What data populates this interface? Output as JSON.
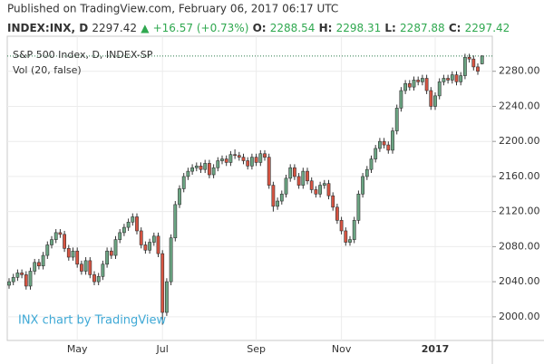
{
  "header": {
    "published": "Published on TradingView.com, February 06, 2017 06:17 UTC",
    "symbol": "INDEX:INX, D",
    "arrow": "▲",
    "change": "+16.57 (+0.73%)",
    "o": "O:",
    "h": "H:",
    "l": "L:",
    "c": "C:"
  },
  "chart_data": {
    "type": "candlestick",
    "title": "S&P 500 Index, D, INDEX-SP",
    "subtitle": "Vol (20, false)",
    "watermark": "INX chart by TradingView",
    "categories": [
      null,
      null,
      null,
      null,
      null,
      null,
      null,
      null,
      null,
      null,
      null,
      null,
      null,
      null,
      null,
      null,
      "May",
      null,
      null,
      null,
      null,
      null,
      null,
      null,
      null,
      null,
      null,
      null,
      null,
      null,
      null,
      null,
      null,
      null,
      null,
      null,
      "Jul",
      null,
      null,
      null,
      null,
      null,
      null,
      null,
      null,
      null,
      null,
      null,
      null,
      null,
      null,
      null,
      null,
      null,
      null,
      null,
      null,
      null,
      "Sep",
      null,
      null,
      null,
      null,
      null,
      null,
      null,
      null,
      null,
      null,
      null,
      null,
      null,
      null,
      null,
      null,
      null,
      null,
      null,
      "Nov",
      null,
      null,
      null,
      null,
      null,
      null,
      null,
      null,
      null,
      null,
      null,
      null,
      null,
      null,
      null,
      null,
      null,
      null,
      null,
      null,
      null,
      "2017",
      null,
      null,
      null,
      null,
      null,
      null,
      null,
      null,
      null,
      null,
      null
    ],
    "open": [
      2036,
      2040,
      2045,
      2050,
      2048,
      2035,
      2052,
      2062,
      2058,
      2070,
      2082,
      2088,
      2096,
      2094,
      2078,
      2068,
      2075,
      2060,
      2052,
      2064,
      2048,
      2040,
      2046,
      2060,
      2075,
      2070,
      2088,
      2096,
      2102,
      2108,
      2114,
      2098,
      2082,
      2076,
      2085,
      2092,
      2072,
      2005,
      2040,
      2090,
      2128,
      2146,
      2160,
      2166,
      2170,
      2172,
      2168,
      2175,
      2162,
      2170,
      2178,
      2180,
      2176,
      2185,
      2184,
      2182,
      2178,
      2172,
      2182,
      2176,
      2186,
      2182,
      2150,
      2126,
      2132,
      2140,
      2158,
      2170,
      2160,
      2150,
      2166,
      2155,
      2145,
      2140,
      2150,
      2152,
      2138,
      2125,
      2110,
      2098,
      2085,
      2088,
      2110,
      2140,
      2160,
      2168,
      2180,
      2192,
      2200,
      2196,
      2190,
      2212,
      2238,
      2258,
      2266,
      2262,
      2270,
      2268,
      2272,
      2258,
      2240,
      2252,
      2268,
      2272,
      2270,
      2276,
      2268,
      2275,
      2296,
      2294,
      2285,
      2288.54
    ],
    "high": [
      2044,
      2049,
      2054,
      2054,
      2052,
      2056,
      2066,
      2066,
      2074,
      2086,
      2092,
      2100,
      2100,
      2098,
      2082,
      2079,
      2079,
      2064,
      2068,
      2068,
      2052,
      2050,
      2064,
      2079,
      2079,
      2092,
      2100,
      2106,
      2112,
      2118,
      2118,
      2102,
      2086,
      2089,
      2096,
      2096,
      2076,
      2044,
      2094,
      2132,
      2150,
      2164,
      2170,
      2174,
      2176,
      2176,
      2179,
      2179,
      2174,
      2182,
      2184,
      2184,
      2189,
      2191,
      2188,
      2186,
      2182,
      2186,
      2186,
      2190,
      2190,
      2186,
      2154,
      2136,
      2144,
      2162,
      2174,
      2174,
      2164,
      2170,
      2170,
      2159,
      2149,
      2154,
      2156,
      2156,
      2142,
      2129,
      2114,
      2102,
      2092,
      2114,
      2144,
      2164,
      2172,
      2184,
      2196,
      2204,
      2204,
      2200,
      2216,
      2242,
      2262,
      2270,
      2270,
      2274,
      2274,
      2276,
      2276,
      2262,
      2256,
      2272,
      2276,
      2276,
      2280,
      2280,
      2279,
      2300,
      2300,
      2298,
      2289,
      2298.31
    ],
    "low": [
      2032,
      2036,
      2041,
      2044,
      2031,
      2031,
      2048,
      2054,
      2054,
      2066,
      2078,
      2084,
      2090,
      2074,
      2064,
      2064,
      2056,
      2048,
      2048,
      2044,
      2036,
      2036,
      2042,
      2056,
      2066,
      2066,
      2084,
      2092,
      2098,
      2104,
      2094,
      2078,
      2072,
      2072,
      2081,
      2068,
      1991,
      2001,
      2036,
      2086,
      2124,
      2142,
      2156,
      2162,
      2166,
      2164,
      2164,
      2158,
      2158,
      2166,
      2174,
      2172,
      2172,
      2180,
      2178,
      2174,
      2168,
      2168,
      2172,
      2172,
      2178,
      2146,
      2120,
      2122,
      2128,
      2136,
      2154,
      2156,
      2146,
      2146,
      2151,
      2141,
      2136,
      2136,
      2146,
      2134,
      2121,
      2106,
      2094,
      2081,
      2081,
      2084,
      2106,
      2136,
      2156,
      2164,
      2176,
      2188,
      2192,
      2186,
      2186,
      2208,
      2234,
      2254,
      2258,
      2258,
      2264,
      2264,
      2254,
      2236,
      2236,
      2248,
      2264,
      2266,
      2266,
      2264,
      2264,
      2271,
      2290,
      2281,
      2276,
      2287.88
    ],
    "close": [
      2040,
      2045,
      2050,
      2048,
      2035,
      2052,
      2062,
      2058,
      2070,
      2082,
      2088,
      2096,
      2094,
      2078,
      2068,
      2075,
      2060,
      2052,
      2064,
      2048,
      2040,
      2046,
      2060,
      2075,
      2070,
      2088,
      2096,
      2102,
      2108,
      2114,
      2098,
      2082,
      2076,
      2085,
      2092,
      2072,
      2005,
      2040,
      2090,
      2128,
      2146,
      2160,
      2166,
      2170,
      2172,
      2168,
      2175,
      2162,
      2170,
      2178,
      2180,
      2176,
      2185,
      2184,
      2182,
      2178,
      2172,
      2182,
      2176,
      2186,
      2182,
      2150,
      2126,
      2132,
      2140,
      2158,
      2170,
      2160,
      2150,
      2166,
      2155,
      2145,
      2140,
      2150,
      2152,
      2138,
      2125,
      2110,
      2098,
      2085,
      2088,
      2110,
      2140,
      2160,
      2168,
      2180,
      2192,
      2200,
      2196,
      2190,
      2212,
      2238,
      2258,
      2266,
      2262,
      2270,
      2268,
      2272,
      2258,
      2240,
      2252,
      2268,
      2272,
      2270,
      2276,
      2268,
      2275,
      2296,
      2294,
      2285,
      2280,
      2297.42
    ],
    "up_color": "#6ba583",
    "down_color": "#d75442",
    "ylim": [
      1973,
      2320
    ],
    "yticks": [
      {
        "value": 2000,
        "label": "2000.00"
      },
      {
        "value": 2040,
        "label": "2040.00"
      },
      {
        "value": 2080,
        "label": "2080.00"
      },
      {
        "value": 2120,
        "label": "2120.00"
      },
      {
        "value": 2160,
        "label": "2160.00"
      },
      {
        "value": 2200,
        "label": "2200.00"
      },
      {
        "value": 2240,
        "label": "2240.00"
      },
      {
        "value": 2280,
        "label": "2280.00"
      }
    ],
    "grid": true
  }
}
